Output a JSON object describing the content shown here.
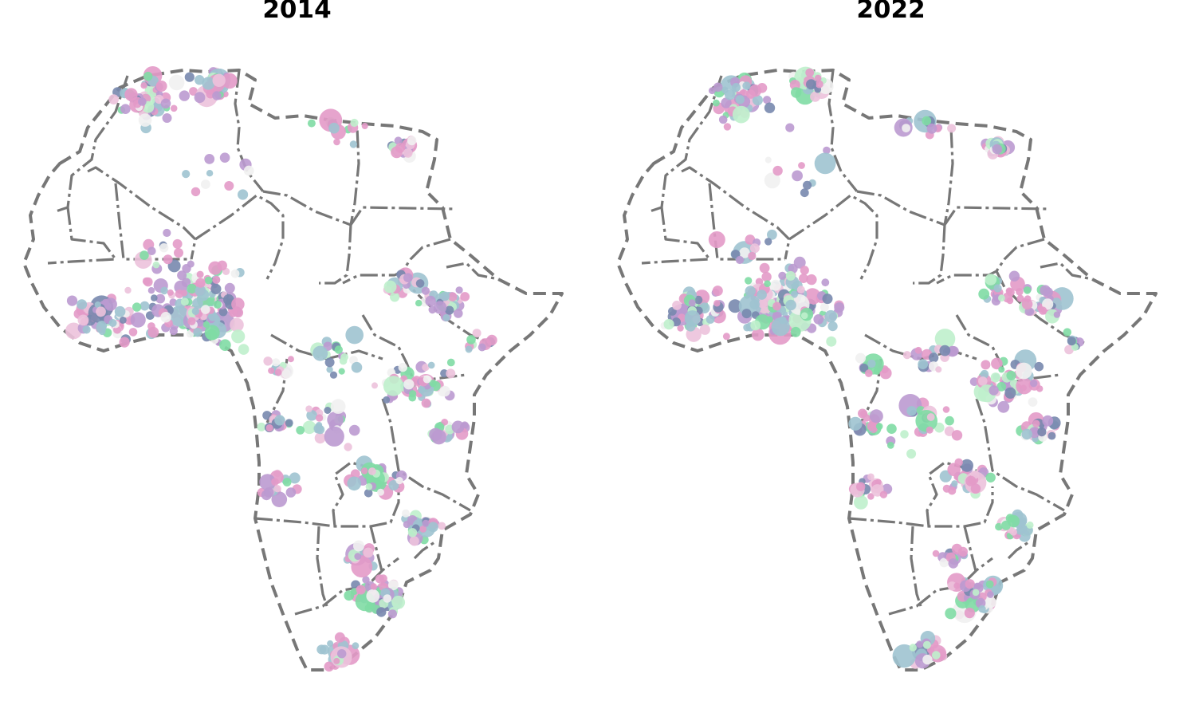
{
  "figure": {
    "panels": [
      {
        "title": "2014",
        "seed": 2014
      },
      {
        "title": "2022",
        "seed": 2022
      }
    ]
  },
  "palette": {
    "pink": "#e39ac8",
    "light_pink": "#ecc2dc",
    "lavender": "#bb9ad0",
    "slate_blue": "#7888ae",
    "light_blue": "#9ec3d0",
    "mint": "#7fdba4",
    "light_mint": "#bff0cc",
    "white": "#f1f1f1",
    "border": "#777777"
  }
}
